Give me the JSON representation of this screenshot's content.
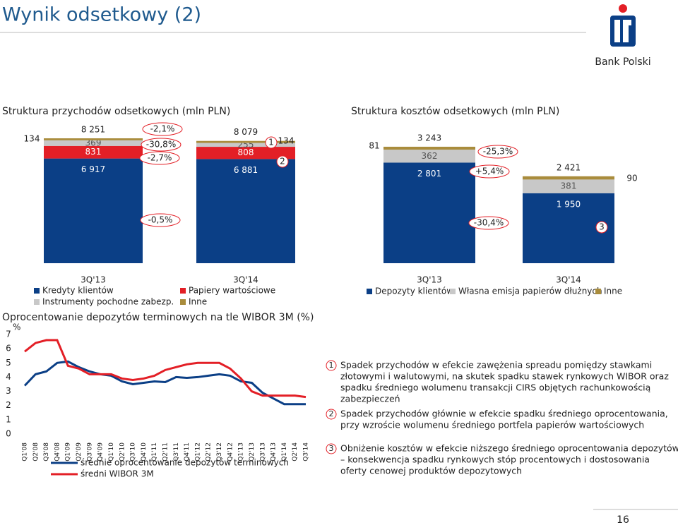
{
  "header": {
    "title": "Wynik odsetkowy (2)",
    "brand": "Bank Polski",
    "page": "16"
  },
  "chart_data": [
    {
      "type": "stacked-bar",
      "title": "Struktura przychodów odsetkowych (mln PLN)",
      "categories": [
        "3Q'13",
        "3Q'14"
      ],
      "series": [
        {
          "name": "Kredyty klientów",
          "color": "#0b3f86",
          "values": [
            6917,
            6881
          ],
          "value_labels": [
            "6 917",
            "6 881"
          ]
        },
        {
          "name": "Papiery wartościowe",
          "color": "#e31f26",
          "values": [
            831,
            808
          ]
        },
        {
          "name": "Instrumenty pochodne zabezp.",
          "color": "#c8c8c8",
          "values": [
            369,
            255
          ]
        },
        {
          "name": "Inne",
          "color": "#a98c3c",
          "values": [
            134,
            134
          ]
        }
      ],
      "totals": [
        8251,
        8079
      ],
      "total_labels": [
        "8 251",
        "8 079"
      ],
      "annotations": [
        "-2,1%",
        "-30,8%",
        "-2,7%",
        "-0,5%"
      ],
      "markers": [
        "1",
        "2"
      ]
    },
    {
      "type": "stacked-bar",
      "title": "Struktura kosztów odsetkowych (mln PLN)",
      "categories": [
        "3Q'13",
        "3Q'14"
      ],
      "series": [
        {
          "name": "Depozyty klientów",
          "color": "#0b3f86",
          "values": [
            2801,
            1950
          ],
          "value_labels": [
            "2 801",
            "1 950"
          ]
        },
        {
          "name": "Własna emisja papierów dłużnych",
          "color": "#c8c8c8",
          "values": [
            362,
            381
          ]
        },
        {
          "name": "Inne",
          "color": "#a98c3c",
          "values": [
            81,
            90
          ]
        }
      ],
      "totals": [
        3243,
        2421
      ],
      "total_labels": [
        "3 243",
        "2 421"
      ],
      "annotations": [
        "-25,3%",
        "+5,4%",
        "-30,4%"
      ],
      "markers": [
        "3"
      ]
    },
    {
      "type": "line",
      "title": "Oprocentowanie depozytów terminowych na tle WIBOR 3M (%)",
      "y_label": "%",
      "categories": [
        "Q1'08",
        "Q2'08",
        "Q3'08",
        "Q4'08",
        "Q1'09",
        "Q2'09",
        "Q3'09",
        "Q4'09",
        "Q1'10",
        "Q2'10",
        "Q3'10",
        "Q4'10",
        "Q1'11",
        "Q2'11",
        "Q3'11",
        "Q4'11",
        "Q1'12",
        "Q2'12",
        "Q3'12",
        "Q4'12",
        "Q1'13",
        "Q2'13",
        "Q3'13",
        "Q4'13",
        "Q1'14",
        "Q2'14",
        "Q3'14"
      ],
      "series": [
        {
          "name": "średnie oprocentowanie depozytów terminowych",
          "color": "#0b3f86",
          "values": [
            3.4,
            4.2,
            4.4,
            5.0,
            5.1,
            4.7,
            4.4,
            4.2,
            4.1,
            3.7,
            3.5,
            3.6,
            3.7,
            3.65,
            4.0,
            3.95,
            4.0,
            4.1,
            4.2,
            4.1,
            3.7,
            3.6,
            2.9,
            2.5,
            2.1,
            2.1,
            2.1
          ]
        },
        {
          "name": "średni WIBOR 3M",
          "color": "#e31f26",
          "values": [
            5.8,
            6.4,
            6.6,
            6.6,
            4.8,
            4.6,
            4.2,
            4.2,
            4.2,
            3.9,
            3.8,
            3.9,
            4.1,
            4.5,
            4.7,
            4.9,
            5.0,
            5.0,
            5.0,
            4.6,
            3.9,
            3.0,
            2.7,
            2.7,
            2.7,
            2.7,
            2.6
          ]
        }
      ],
      "ylim": [
        0,
        7
      ],
      "yticks": [
        0,
        1,
        2,
        3,
        4,
        5,
        6,
        7
      ]
    }
  ],
  "notes": [
    {
      "marker": "1",
      "lines": [
        "Spadek przychodów w efekcie zawężenia spreadu pomiędzy stawkami",
        "złotowymi i walutowymi, na skutek spadku stawek rynkowych WIBOR oraz",
        "spadku średniego wolumenu transakcji CIRS objętych rachunkowością",
        "zabezpieczeń"
      ]
    },
    {
      "marker": "2",
      "lines": [
        "Spadek przychodów głównie w efekcie spadku średniego oprocentowania,",
        "przy wzroście wolumenu średniego portfela papierów wartościowych"
      ]
    },
    {
      "marker": "3",
      "lines": [
        "Obniżenie kosztów w efekcie niższego średniego oprocentowania depozytów",
        "– konsekwencja spadku rynkowych stóp procentowych i dostosowania",
        "oferty cenowej produktów depozytowych"
      ]
    }
  ]
}
